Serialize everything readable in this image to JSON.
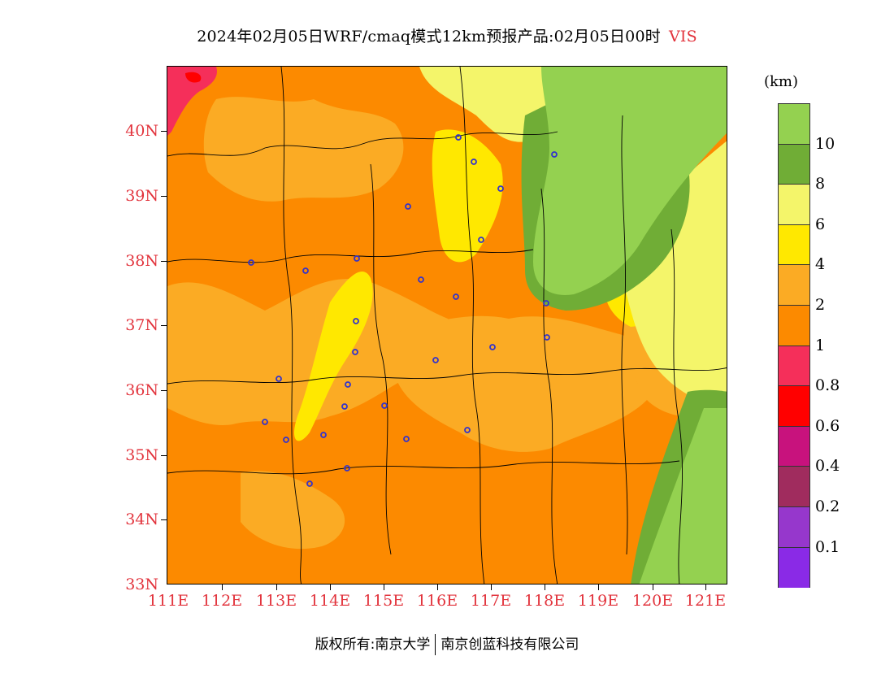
{
  "title": {
    "main": "2024年02月05日WRF/cmaq模式12km预报产品:02月05日00时",
    "variable": "VIS"
  },
  "map": {
    "lat_labels": [
      "40N",
      "39N",
      "38N",
      "37N",
      "36N",
      "35N",
      "34N",
      "33N"
    ],
    "lon_labels": [
      "111E",
      "112E",
      "113E",
      "114E",
      "115E",
      "116E",
      "117E",
      "118E",
      "119E",
      "120E",
      "121E"
    ],
    "station_marker_color": "#3333cc",
    "boundary_color": "#000000"
  },
  "legend": {
    "unit": "(km)",
    "levels": [
      {
        "label": "10",
        "color": "#94d150"
      },
      {
        "label": "8",
        "color": "#70ad36"
      },
      {
        "label": "6",
        "color": "#f4f56a"
      },
      {
        "label": "4",
        "color": "#ffe800"
      },
      {
        "label": "2",
        "color": "#fbab24"
      },
      {
        "label": "1",
        "color": "#fc8a00"
      },
      {
        "label": "0.8",
        "color": "#f52f5a"
      },
      {
        "label": "0.6",
        "color": "#ff0000"
      },
      {
        "label": "0.4",
        "color": "#c8127d"
      },
      {
        "label": "0.2",
        "color": "#a02c5e"
      },
      {
        "label": "0.1",
        "color": "#9637cc"
      },
      {
        "label": "",
        "color": "#8a2ae6"
      }
    ]
  },
  "footer": {
    "copyright": "版权所有:南京大学",
    "company": "南京创蓝科技有限公司"
  }
}
